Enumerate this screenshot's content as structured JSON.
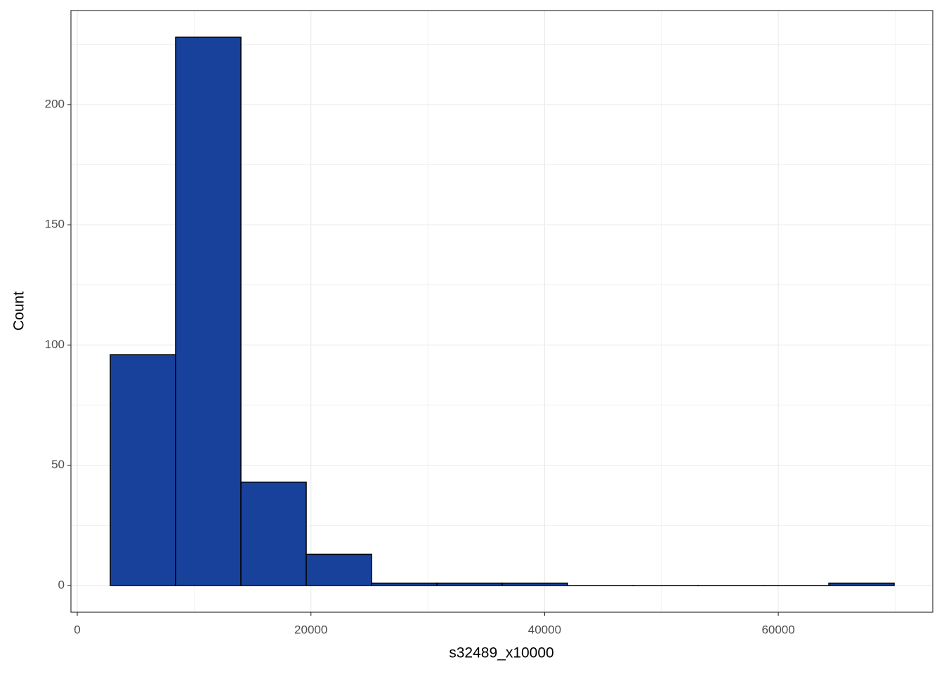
{
  "chart_data": {
    "type": "histogram",
    "x_label": "s32489_x10000",
    "y_label": "Count",
    "bins": [
      2825,
      8416,
      14007,
      19598,
      25189,
      30780,
      36371,
      41962,
      47553,
      53144,
      58735,
      64326,
      69917
    ],
    "counts": [
      96,
      228,
      43,
      13,
      1,
      1,
      1,
      0,
      0,
      0,
      0,
      1
    ],
    "color": "#17419a",
    "edge_color": "#000000",
    "xlim": [
      -541,
      73220
    ],
    "xticks": [
      0,
      20000,
      40000,
      60000
    ],
    "xminor": [
      10000,
      30000,
      50000,
      70000
    ],
    "ylim": [
      -11.1,
      239.1
    ],
    "yticks": [
      0,
      50,
      100,
      150,
      200
    ],
    "yminor": [
      25,
      75,
      125,
      175,
      225
    ],
    "grid": true
  }
}
